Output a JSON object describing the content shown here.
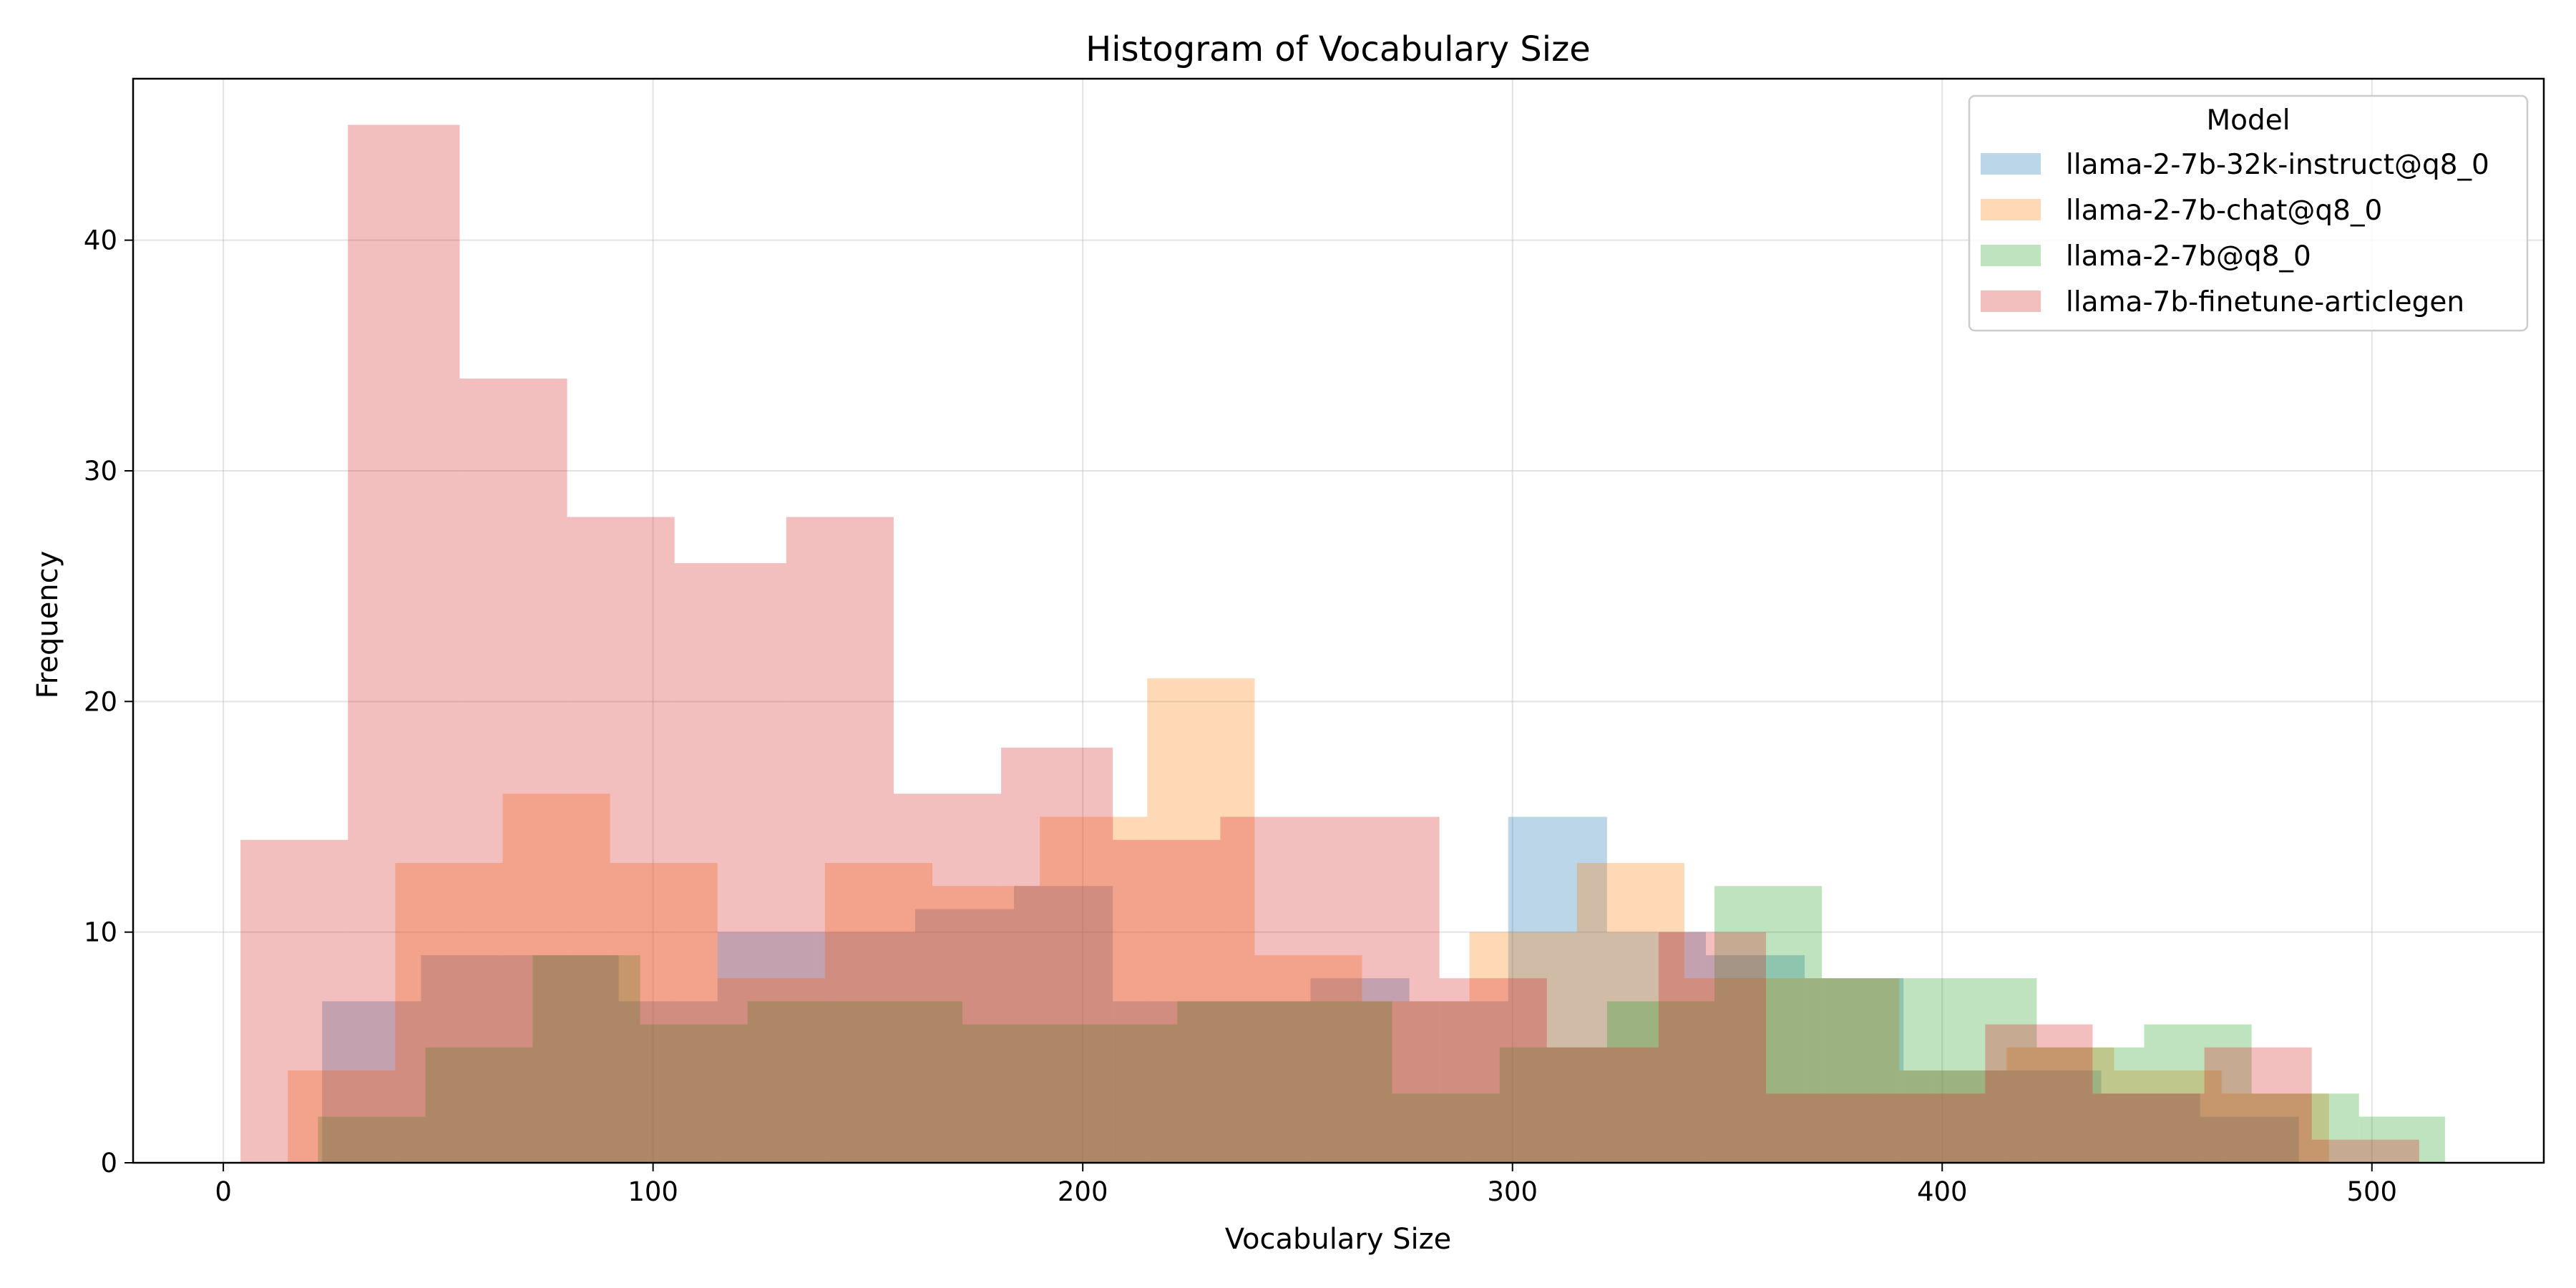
{
  "chart_data": {
    "type": "histogram",
    "title": "Histogram of Vocabulary Size",
    "xlabel": "Vocabulary Size",
    "ylabel": "Frequency",
    "xlim": [
      -21,
      540
    ],
    "ylim": [
      0,
      47
    ],
    "xticks": [
      0,
      100,
      200,
      300,
      400,
      500
    ],
    "yticks": [
      0,
      10,
      20,
      30,
      40
    ],
    "grid": true,
    "legend": {
      "title": "Model",
      "position": "top-right"
    },
    "series": [
      {
        "name": "llama-2-7b-32k-instruct@q8_0",
        "color": "#1f77b4",
        "bin_edges": [
          23,
          46,
          69,
          92,
          115,
          138,
          161,
          184,
          207,
          230,
          253,
          276,
          299,
          322,
          345,
          368,
          391,
          414,
          437,
          460,
          483
        ],
        "counts": [
          7,
          9,
          9,
          7,
          10,
          10,
          11,
          12,
          7,
          7,
          8,
          7,
          15,
          10,
          9,
          8,
          4,
          4,
          3,
          2
        ]
      },
      {
        "name": "llama-2-7b-chat@q8_0",
        "color": "#ff7f0e",
        "bin_edges": [
          15,
          40,
          65,
          90,
          115,
          140,
          165,
          190,
          215,
          240,
          265,
          290,
          315,
          340,
          365,
          390,
          415,
          440,
          465,
          490
        ],
        "counts": [
          4,
          13,
          16,
          13,
          8,
          13,
          12,
          15,
          21,
          9,
          7,
          10,
          13,
          8,
          8,
          4,
          5,
          4,
          3
        ]
      },
      {
        "name": "llama-2-7b@q8_0",
        "color": "#2ca02c",
        "bin_edges": [
          22,
          47,
          72,
          97,
          122,
          147,
          172,
          197,
          222,
          247,
          272,
          297,
          322,
          347,
          372,
          397,
          422,
          447,
          472,
          497,
          517
        ],
        "counts": [
          2,
          5,
          9,
          6,
          7,
          7,
          6,
          6,
          7,
          7,
          3,
          5,
          7,
          12,
          8,
          8,
          5,
          6,
          3,
          2
        ]
      },
      {
        "name": "llama-7b-finetune-articlegen",
        "color": "#d62728",
        "bin_edges": [
          4,
          29,
          55,
          80,
          105,
          131,
          156,
          181,
          207,
          232,
          258,
          283,
          308,
          334,
          359,
          384,
          410,
          435,
          461,
          486,
          511
        ],
        "counts": [
          14,
          45,
          34,
          28,
          26,
          28,
          16,
          18,
          14,
          15,
          15,
          8,
          5,
          10,
          3,
          3,
          6,
          3,
          5,
          1
        ]
      }
    ]
  }
}
